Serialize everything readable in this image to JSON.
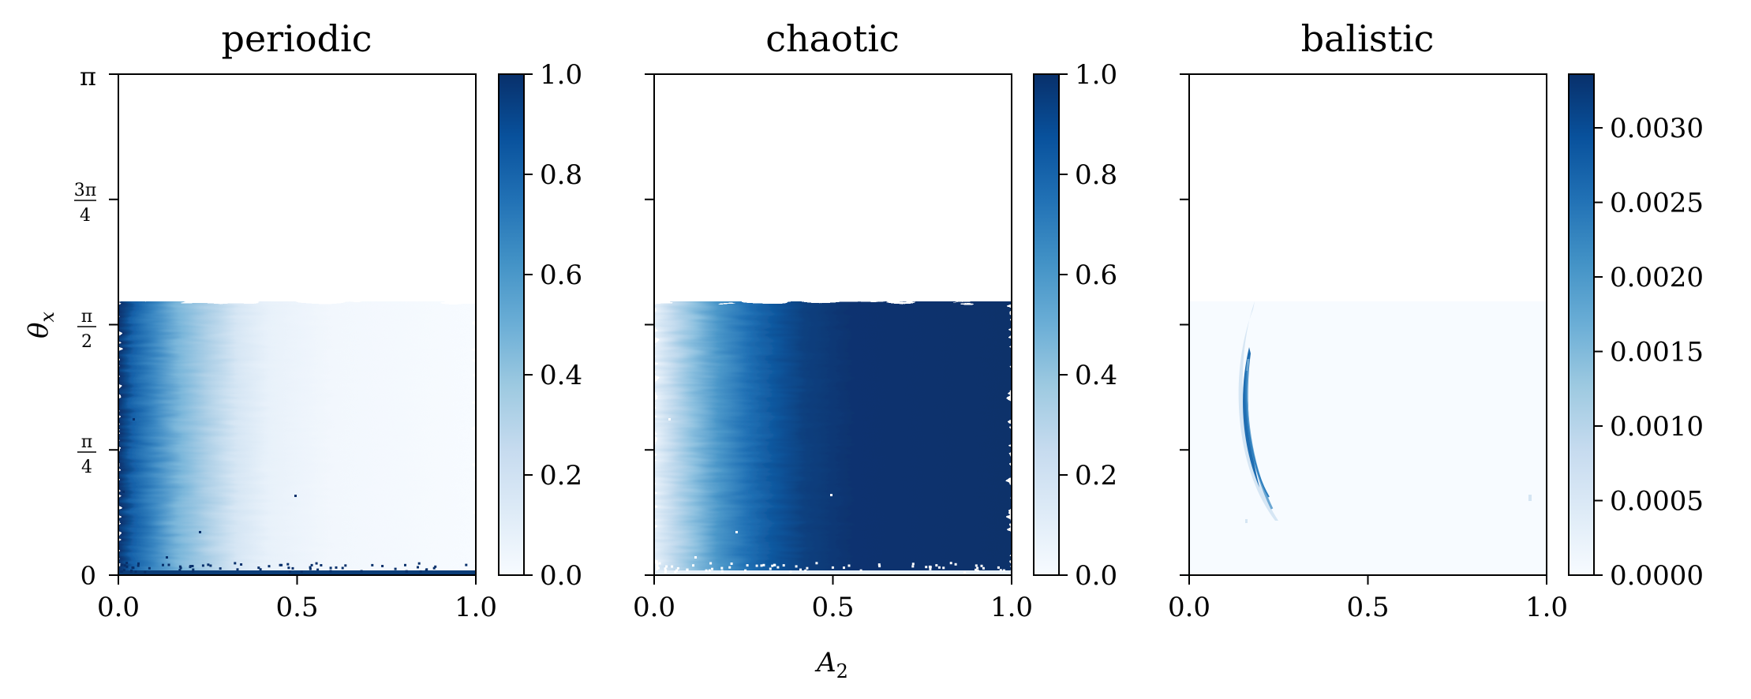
{
  "chart_data": [
    {
      "type": "heatmap",
      "title": "periodic",
      "xlim": [
        0.0,
        1.0
      ],
      "ylim": [
        0,
        3.14159
      ],
      "xticks": [
        0.0,
        0.5,
        1.0
      ],
      "xtick_labels": [
        "0.0",
        "0.5",
        "1.0"
      ],
      "ytick_values": [
        0,
        0.7854,
        1.5708,
        2.3562,
        3.14159
      ],
      "ytick_labels": [
        "0",
        "π/4",
        "π/2",
        "3π/4",
        "π"
      ],
      "data_y_range": [
        0,
        1.73
      ],
      "colormap": [
        "#f7fbff",
        "#deebf7",
        "#c6dbef",
        "#9ecae1",
        "#6baed6",
        "#4292c6",
        "#2171b5",
        "#08519c",
        "#08306b"
      ],
      "trend": "high near A2 = 0, decaying to ~0 by A2 ≈ 0.35",
      "colorbar": {
        "range": [
          0.0,
          1.0
        ],
        "ticks": [
          0.0,
          0.2,
          0.4,
          0.6,
          0.8,
          1.0
        ],
        "tick_labels": [
          "0.0",
          "0.2",
          "0.4",
          "0.6",
          "0.8",
          "1.0"
        ]
      }
    },
    {
      "type": "heatmap",
      "title": "chaotic",
      "xlim": [
        0.0,
        1.0
      ],
      "ylim": [
        0,
        3.14159
      ],
      "xticks": [
        0.0,
        0.5,
        1.0
      ],
      "xtick_labels": [
        "0.0",
        "0.5",
        "1.0"
      ],
      "data_y_range": [
        0,
        1.73
      ],
      "colormap": [
        "#f7fbff",
        "#deebf7",
        "#c6dbef",
        "#9ecae1",
        "#6baed6",
        "#4292c6",
        "#2171b5",
        "#08519c",
        "#08306b"
      ],
      "trend": "low near A2 = 0, rising to ~1 by A2 ≈ 0.4",
      "colorbar": {
        "range": [
          0.0,
          1.0
        ],
        "ticks": [
          0.0,
          0.2,
          0.4,
          0.6,
          0.8,
          1.0
        ],
        "tick_labels": [
          "0.0",
          "0.2",
          "0.4",
          "0.6",
          "0.8",
          "1.0"
        ]
      }
    },
    {
      "type": "heatmap",
      "title": "balistic",
      "xlim": [
        0.0,
        1.0
      ],
      "ylim": [
        0,
        3.14159
      ],
      "xticks": [
        0.0,
        0.5,
        1.0
      ],
      "xtick_labels": [
        "0.0",
        "0.5",
        "1.0"
      ],
      "data_y_range": [
        0,
        1.73
      ],
      "colormap": [
        "#f7fbff",
        "#deebf7",
        "#c6dbef",
        "#9ecae1",
        "#6baed6",
        "#4292c6",
        "#2171b5",
        "#08519c",
        "#08306b"
      ],
      "trend": "near zero everywhere except a thin arc around A2 ≈ 0.15–0.25, θx ≈ 0.4–1.5",
      "colorbar": {
        "range": [
          0.0,
          0.00336
        ],
        "ticks": [
          0.0,
          0.0005,
          0.001,
          0.0015,
          0.002,
          0.0025,
          0.003
        ],
        "tick_labels": [
          "0.0000",
          "0.0005",
          "0.0010",
          "0.0015",
          "0.0020",
          "0.0025",
          "0.0030"
        ]
      }
    }
  ],
  "axes": {
    "xlabel": "A",
    "xlabel_sub": "2",
    "ylabel": "θ",
    "ylabel_sub": "x"
  }
}
